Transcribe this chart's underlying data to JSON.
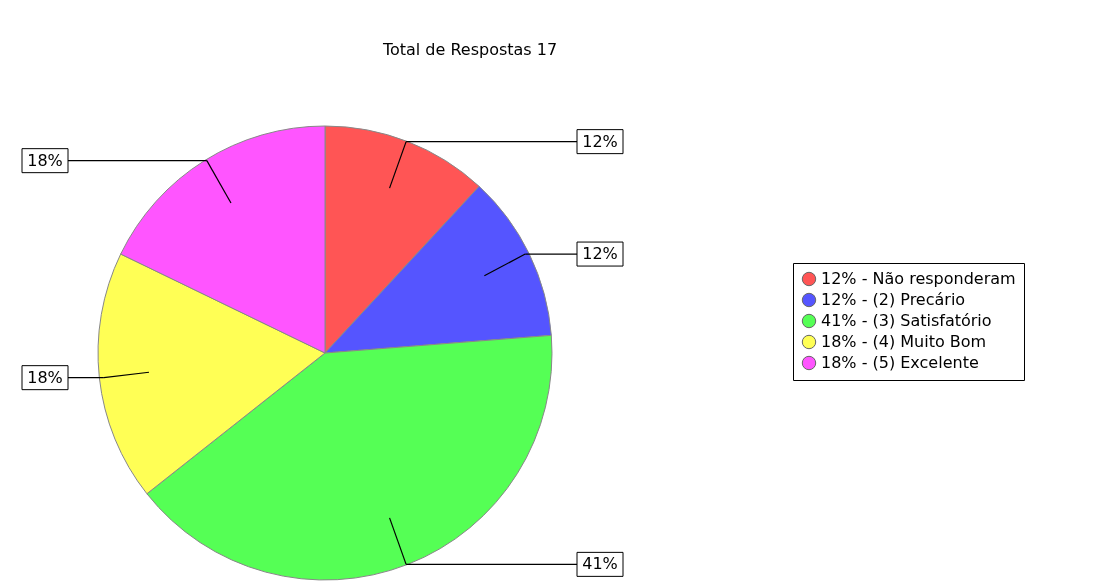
{
  "chart_data": {
    "type": "pie",
    "title": "Total de Respostas 17",
    "categories": [
      "Não responderam",
      "(2) Precário",
      "(3) Satisfatório",
      "(4) Muito Bom",
      "(5) Excelente"
    ],
    "values": [
      12,
      12,
      41,
      18,
      18
    ],
    "value_labels": [
      "12%",
      "12%",
      "41%",
      "18%",
      "18%"
    ],
    "colors": [
      "#ff5555",
      "#5555ff",
      "#55ff55",
      "#ffff55",
      "#ff55ff"
    ],
    "legend": "right"
  }
}
